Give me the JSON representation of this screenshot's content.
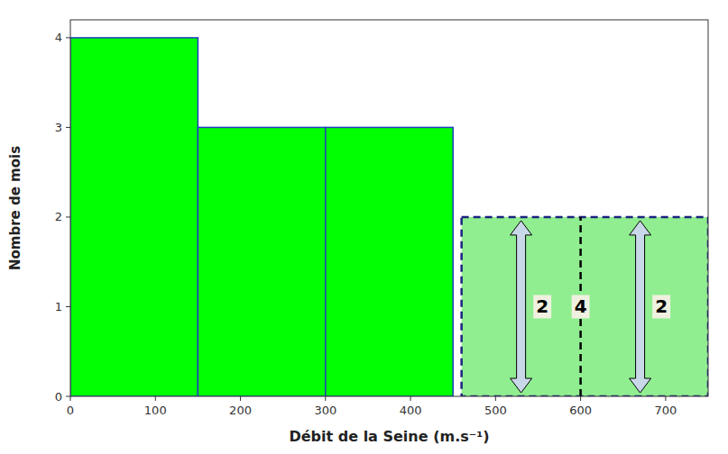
{
  "chart_data": {
    "type": "histogram",
    "xlabel": "Débit de la Seine (m.s⁻¹)",
    "ylabel": "Nombre de mois",
    "bins": [
      0,
      150,
      300,
      450
    ],
    "values": [
      4,
      3,
      3
    ],
    "color": "#00FF00",
    "xlim": [
      0,
      750
    ],
    "ylim": [
      0,
      4.2
    ],
    "xticks": [
      0,
      100,
      200,
      300,
      400,
      500,
      600,
      700
    ],
    "yticks": [
      0,
      1,
      2,
      3,
      4
    ],
    "grid": false,
    "annotations": [
      {
        "type": "box",
        "x": [
          460,
          750
        ],
        "y": [
          0.0,
          2.0
        ],
        "color": "#90EE90"
      },
      {
        "type": "line",
        "x": 600,
        "y": [
          0.0,
          2.0
        ]
      },
      {
        "type": "arrow",
        "x": 530,
        "y": [
          0.04,
          1.96
        ],
        "color": "#C8D8E8"
      },
      {
        "type": "arrow",
        "x": 670,
        "y": [
          0.04,
          1.96
        ],
        "color": "#C8D8E8"
      },
      {
        "type": "text",
        "text": "2",
        "x": 555,
        "y": 1.0
      },
      {
        "type": "text",
        "text": "2",
        "x": 695,
        "y": 1.0
      },
      {
        "type": "text",
        "text": "4",
        "x": 600,
        "y": 1.0
      }
    ]
  }
}
